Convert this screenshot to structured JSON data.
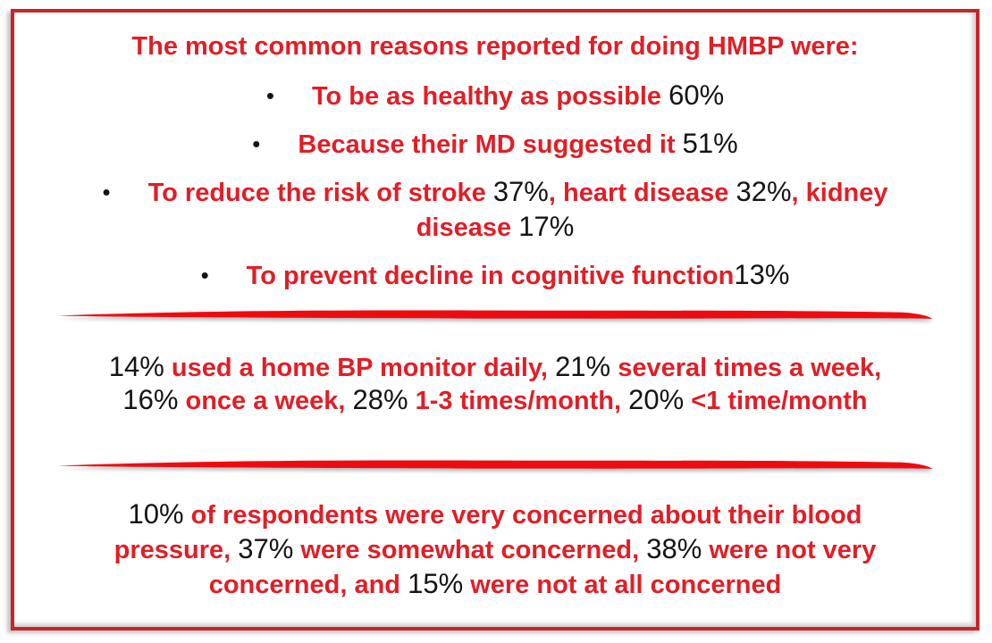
{
  "colors": {
    "red": "#e11e26",
    "black": "#141414",
    "border": "#c9242a",
    "divider": "#ee0b10"
  },
  "bullet_marker": "•",
  "title": {
    "segments": [
      {
        "t": "The most common reasons reported for doing HMBP were:",
        "c": "red"
      }
    ]
  },
  "reasons": {
    "items": [
      {
        "lines": [
          [
            {
              "t": "To be as healthy as possible ",
              "c": "red"
            },
            {
              "t": "60%",
              "c": "black"
            }
          ]
        ]
      },
      {
        "lines": [
          [
            {
              "t": "Because their MD suggested it ",
              "c": "red"
            },
            {
              "t": "51%",
              "c": "black"
            }
          ]
        ]
      },
      {
        "lines": [
          [
            {
              "t": "To reduce the risk of stroke ",
              "c": "red"
            },
            {
              "t": "37%",
              "c": "black"
            },
            {
              "t": ", heart disease ",
              "c": "red"
            },
            {
              "t": "32%",
              "c": "black"
            },
            {
              "t": ", kidney",
              "c": "red"
            }
          ],
          [
            {
              "t": "disease ",
              "c": "red"
            },
            {
              "t": "17%",
              "c": "black"
            }
          ]
        ]
      },
      {
        "lines": [
          [
            {
              "t": "To prevent decline in cognitive function",
              "c": "red"
            },
            {
              "t": "13%",
              "c": "black"
            }
          ]
        ]
      }
    ]
  },
  "frequency": {
    "lines": [
      [
        {
          "t": "14%",
          "c": "black"
        },
        {
          "t": " used a home BP monitor daily, ",
          "c": "red"
        },
        {
          "t": "21%",
          "c": "black"
        },
        {
          "t": " several times a week,",
          "c": "red"
        }
      ],
      [
        {
          "t": "16%",
          "c": "black"
        },
        {
          "t": " once a week, ",
          "c": "red"
        },
        {
          "t": "28%",
          "c": "black"
        },
        {
          "t": " 1-3 times/month, ",
          "c": "red"
        },
        {
          "t": "20%",
          "c": "black"
        },
        {
          "t": " <1 time/month",
          "c": "red"
        }
      ]
    ]
  },
  "concern": {
    "lines": [
      [
        {
          "t": "10%",
          "c": "black"
        },
        {
          "t": " of respondents were very concerned about their blood",
          "c": "red"
        }
      ],
      [
        {
          "t": "pressure, ",
          "c": "red"
        },
        {
          "t": "37%",
          "c": "black"
        },
        {
          "t": " were somewhat concerned, ",
          "c": "red"
        },
        {
          "t": "38%",
          "c": "black"
        },
        {
          "t": " were not very",
          "c": "red"
        }
      ],
      [
        {
          "t": "concerned, and ",
          "c": "red"
        },
        {
          "t": "15%",
          "c": "black"
        },
        {
          "t": " were not at all concerned",
          "c": "red"
        }
      ]
    ]
  }
}
